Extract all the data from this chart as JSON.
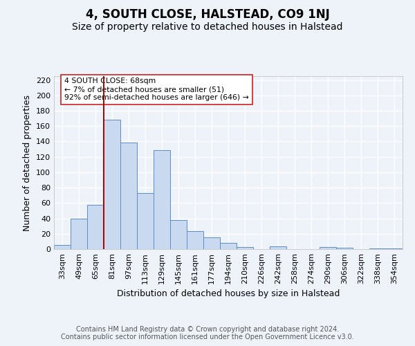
{
  "title": "4, SOUTH CLOSE, HALSTEAD, CO9 1NJ",
  "subtitle": "Size of property relative to detached houses in Halstead",
  "xlabel": "Distribution of detached houses by size in Halstead",
  "ylabel": "Number of detached properties",
  "bar_labels": [
    "33sqm",
    "49sqm",
    "65sqm",
    "81sqm",
    "97sqm",
    "113sqm",
    "129sqm",
    "145sqm",
    "161sqm",
    "177sqm",
    "194sqm",
    "210sqm",
    "226sqm",
    "242sqm",
    "258sqm",
    "274sqm",
    "290sqm",
    "306sqm",
    "322sqm",
    "338sqm",
    "354sqm"
  ],
  "bar_values": [
    5,
    40,
    58,
    168,
    139,
    73,
    129,
    38,
    23,
    15,
    8,
    3,
    0,
    4,
    0,
    0,
    3,
    2,
    0,
    1,
    1
  ],
  "bar_color": "#c9d9f0",
  "bar_edge_color": "#5b8cc8",
  "ylim": [
    0,
    225
  ],
  "yticks": [
    0,
    20,
    40,
    60,
    80,
    100,
    120,
    140,
    160,
    180,
    200,
    220
  ],
  "vline_x_index": 2,
  "vline_color": "#aa0000",
  "annotation_text": "4 SOUTH CLOSE: 68sqm\n← 7% of detached houses are smaller (51)\n92% of semi-detached houses are larger (646) →",
  "footer_text": "Contains HM Land Registry data © Crown copyright and database right 2024.\nContains public sector information licensed under the Open Government Licence v3.0.",
  "background_color": "#eef2f9",
  "grid_color": "#ffffff",
  "title_fontsize": 12,
  "subtitle_fontsize": 10,
  "axis_fontsize": 9,
  "tick_fontsize": 8,
  "footer_fontsize": 7
}
